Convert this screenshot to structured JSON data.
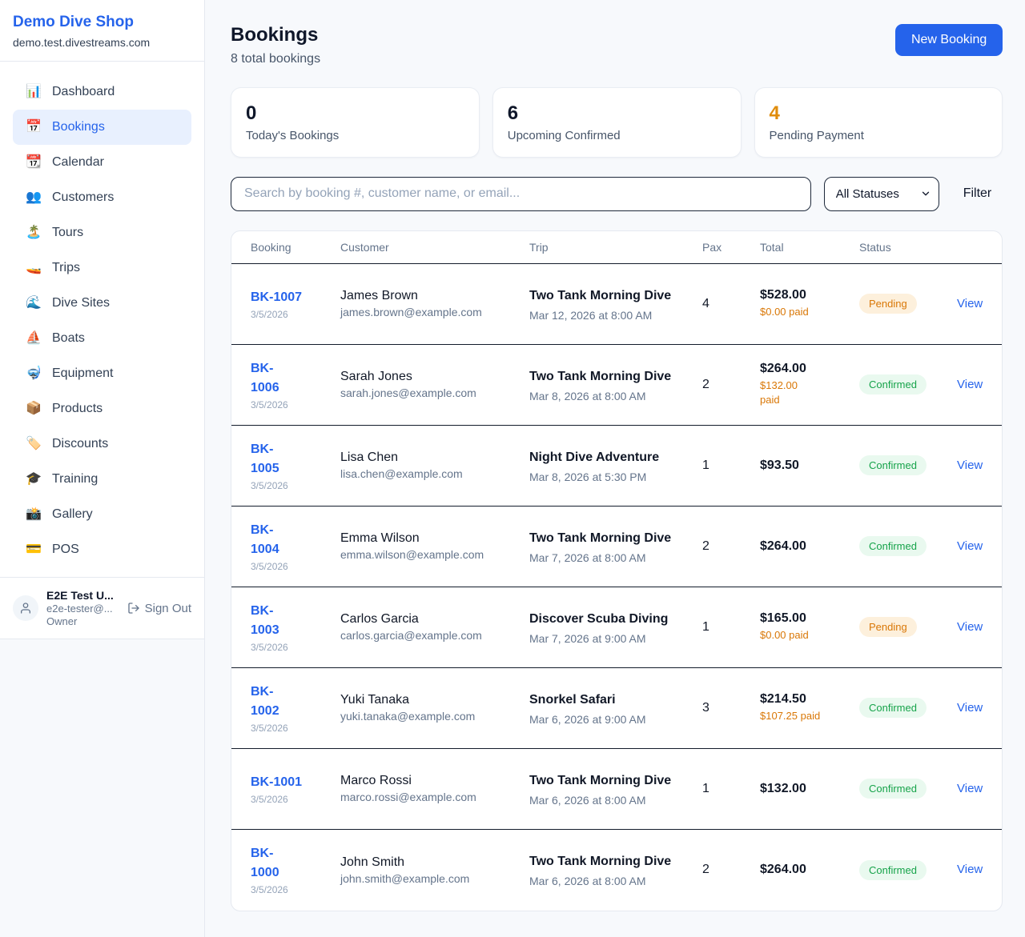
{
  "sidebar": {
    "shop_name": "Demo Dive Shop",
    "domain": "demo.test.divestreams.com",
    "items": [
      {
        "key": "dashboard",
        "icon": "📊",
        "label": "Dashboard",
        "active": false
      },
      {
        "key": "bookings",
        "icon": "📅",
        "label": "Bookings",
        "active": true
      },
      {
        "key": "calendar",
        "icon": "📆",
        "label": "Calendar",
        "active": false
      },
      {
        "key": "customers",
        "icon": "👥",
        "label": "Customers",
        "active": false
      },
      {
        "key": "tours",
        "icon": "🏝️",
        "label": "Tours",
        "active": false
      },
      {
        "key": "trips",
        "icon": "🚤",
        "label": "Trips",
        "active": false
      },
      {
        "key": "dive-sites",
        "icon": "🌊",
        "label": "Dive Sites",
        "active": false
      },
      {
        "key": "boats",
        "icon": "⛵",
        "label": "Boats",
        "active": false
      },
      {
        "key": "equipment",
        "icon": "🤿",
        "label": "Equipment",
        "active": false
      },
      {
        "key": "products",
        "icon": "📦",
        "label": "Products",
        "active": false
      },
      {
        "key": "discounts",
        "icon": "🏷️",
        "label": "Discounts",
        "active": false
      },
      {
        "key": "training",
        "icon": "🎓",
        "label": "Training",
        "active": false
      },
      {
        "key": "gallery",
        "icon": "📸",
        "label": "Gallery",
        "active": false
      },
      {
        "key": "pos",
        "icon": "💳",
        "label": "POS",
        "active": false
      }
    ],
    "user": {
      "name": "E2E Test U...",
      "email": "e2e-tester@...",
      "role": "Owner",
      "sign_out_label": "Sign Out"
    }
  },
  "header": {
    "title": "Bookings",
    "subtitle": "8 total bookings",
    "new_booking_label": "New Booking"
  },
  "stats": [
    {
      "value": "0",
      "label": "Today's Bookings",
      "accent": null
    },
    {
      "value": "6",
      "label": "Upcoming Confirmed",
      "accent": null
    },
    {
      "value": "4",
      "label": "Pending Payment",
      "accent": "orange"
    }
  ],
  "filters": {
    "search_placeholder": "Search by booking #, customer name, or email...",
    "status_selected": "All Statuses",
    "filter_label": "Filter"
  },
  "table": {
    "columns": [
      "Booking",
      "Customer",
      "Trip",
      "Pax",
      "Total",
      "Status"
    ],
    "view_label": "View",
    "rows": [
      {
        "id": "BK-1007",
        "id_display": "BK-1007",
        "date": "3/5/2026",
        "customer": "James Brown",
        "email": "james.brown@example.com",
        "trip": "Two Tank Morning Dive",
        "trip_datetime": "Mar 12, 2026 at 8:00 AM",
        "pax": "4",
        "total": "$528.00",
        "paid": "$0.00 paid",
        "status": "Pending"
      },
      {
        "id": "BK-1006",
        "id_display": "BK-\n1006",
        "date": "3/5/2026",
        "customer": "Sarah Jones",
        "email": "sarah.jones@example.com",
        "trip": "Two Tank Morning Dive",
        "trip_datetime": "Mar 8, 2026 at 8:00 AM",
        "pax": "2",
        "total": "$264.00",
        "paid": "$132.00\npaid",
        "status": "Confirmed"
      },
      {
        "id": "BK-1005",
        "id_display": "BK-\n1005",
        "date": "3/5/2026",
        "customer": "Lisa Chen",
        "email": "lisa.chen@example.com",
        "trip": "Night Dive Adventure",
        "trip_datetime": "Mar 8, 2026 at 5:30 PM",
        "pax": "1",
        "total": "$93.50",
        "paid": "",
        "status": "Confirmed"
      },
      {
        "id": "BK-1004",
        "id_display": "BK-\n1004",
        "date": "3/5/2026",
        "customer": "Emma Wilson",
        "email": "emma.wilson@example.com",
        "trip": "Two Tank Morning Dive",
        "trip_datetime": "Mar 7, 2026 at 8:00 AM",
        "pax": "2",
        "total": "$264.00",
        "paid": "",
        "status": "Confirmed"
      },
      {
        "id": "BK-1003",
        "id_display": "BK-\n1003",
        "date": "3/5/2026",
        "customer": "Carlos Garcia",
        "email": "carlos.garcia@example.com",
        "trip": "Discover Scuba Diving",
        "trip_datetime": "Mar 7, 2026 at 9:00 AM",
        "pax": "1",
        "total": "$165.00",
        "paid": "$0.00 paid",
        "status": "Pending"
      },
      {
        "id": "BK-1002",
        "id_display": "BK-\n1002",
        "date": "3/5/2026",
        "customer": "Yuki Tanaka",
        "email": "yuki.tanaka@example.com",
        "trip": "Snorkel Safari",
        "trip_datetime": "Mar 6, 2026 at 9:00 AM",
        "pax": "3",
        "total": "$214.50",
        "paid": "$107.25 paid",
        "status": "Confirmed"
      },
      {
        "id": "BK-1001",
        "id_display": "BK-1001",
        "date": "3/5/2026",
        "customer": "Marco Rossi",
        "email": "marco.rossi@example.com",
        "trip": "Two Tank Morning Dive",
        "trip_datetime": "Mar 6, 2026 at 8:00 AM",
        "pax": "1",
        "total": "$132.00",
        "paid": "",
        "status": "Confirmed"
      },
      {
        "id": "BK-1000",
        "id_display": "BK-\n1000",
        "date": "3/5/2026",
        "customer": "John Smith",
        "email": "john.smith@example.com",
        "trip": "Two Tank Morning Dive",
        "trip_datetime": "Mar 6, 2026 at 8:00 AM",
        "pax": "2",
        "total": "$264.00",
        "paid": "",
        "status": "Confirmed"
      }
    ]
  },
  "colors": {
    "brand_blue": "#2563eb",
    "accent_orange": "#e08c0b",
    "paid_orange": "#d97706",
    "pending_bg": "#fdf0dc",
    "pending_text": "#d97706",
    "confirmed_bg": "#e9f9ef",
    "confirmed_text": "#16a34a",
    "page_bg": "#f7f9fc",
    "row_border": "#131c2b"
  }
}
